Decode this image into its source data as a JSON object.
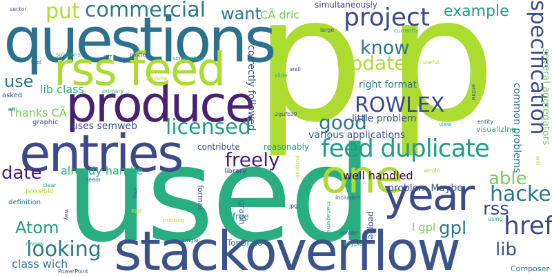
{
  "words": [
    {
      "text": "p",
      "color": "#addc30"
    },
    {
      "text": "p",
      "color": "#addc30"
    },
    {
      "text": "used",
      "color": "#28ae80"
    },
    {
      "text": "questions",
      "color": "#2c728e"
    },
    {
      "text": "stackoverflow",
      "color": "#3b528b"
    },
    {
      "text": "entries",
      "color": "#3e4989"
    },
    {
      "text": "produce",
      "color": "#482173"
    },
    {
      "text": "rss feed",
      "color": "#addc30"
    },
    {
      "text": "one",
      "color": "#addc30"
    },
    {
      "text": "year",
      "color": "#3e4989"
    },
    {
      "text": "feed duplicate",
      "color": "#1f9e89"
    },
    {
      "text": "project",
      "color": "#3e4989"
    },
    {
      "text": "href",
      "color": "#3e4989"
    },
    {
      "text": "specification",
      "color": "#3e4989"
    },
    {
      "text": "hacked",
      "color": "#2a788e"
    },
    {
      "text": "licensed",
      "color": "#1f9e89"
    },
    {
      "text": "looking",
      "color": "#2a788e"
    },
    {
      "text": "ROWLEX",
      "color": "#3e4989"
    },
    {
      "text": "commercial",
      "color": "#2a788e"
    },
    {
      "text": "put",
      "color": "#addc30"
    },
    {
      "text": "freely",
      "color": "#482173"
    },
    {
      "text": "good",
      "color": "#2a788e"
    },
    {
      "text": "Update",
      "color": "#addc30"
    },
    {
      "text": "know",
      "color": "#2a788e"
    },
    {
      "text": "date",
      "color": "#482173"
    },
    {
      "text": "able",
      "color": "#75d054"
    },
    {
      "text": "rss",
      "color": "#3e4989"
    },
    {
      "text": "gpl",
      "color": "#2a788e"
    },
    {
      "text": "lib",
      "color": "#3b528b"
    },
    {
      "text": "Atom",
      "color": "#1f9e89"
    },
    {
      "text": "want",
      "color": "#2a788e"
    },
    {
      "text": "use",
      "color": "#2a788e"
    },
    {
      "text": "example",
      "color": "#1f9e89"
    },
    {
      "text": "CÃ dric",
      "color": "#75d054"
    },
    {
      "text": "lib class",
      "color": "#28ae80"
    },
    {
      "text": "Thanks CÃ",
      "color": "#75d054"
    },
    {
      "text": "uses semweb",
      "color": "#3b528b"
    },
    {
      "text": "already handle",
      "color": "#28ae80"
    },
    {
      "text": "well handled",
      "color": "#440154"
    },
    {
      "text": "problem Maybe",
      "color": "#3b528b"
    },
    {
      "text": "class wich",
      "color": "#2a788e"
    },
    {
      "text": "little problem",
      "color": "#3b528b"
    },
    {
      "text": "right format",
      "color": "#2a788e"
    },
    {
      "text": "various applications",
      "color": "#3b528b"
    },
    {
      "text": "common problems",
      "color": "#2a788e"
    },
    {
      "text": "several aggregators",
      "color": "#75d054"
    },
    {
      "text": "correctly followed",
      "color": "#3e4989"
    },
    {
      "text": "simultaneously",
      "color": "#3e4989"
    },
    {
      "text": "reasonably",
      "color": "#1f9e89"
    },
    {
      "text": "contribute",
      "color": "#3b528b"
    },
    {
      "text": "TopBraid",
      "color": "#2a788e"
    },
    {
      "text": "l gpl",
      "color": "#75d054"
    },
    {
      "text": "graph",
      "color": "#2a788e"
    },
    {
      "text": "people",
      "color": "#3b528b"
    },
    {
      "text": "library",
      "color": "#3e4989"
    },
    {
      "text": "free",
      "color": "#2a788e"
    },
    {
      "text": "format",
      "color": "#3b528b"
    },
    {
      "text": "visualizing",
      "color": "#28ae80"
    },
    {
      "text": "Composer",
      "color": "#2a788e"
    },
    {
      "text": "graphic",
      "color": "#3b528b"
    },
    {
      "text": "definition",
      "color": "#2a788e"
    },
    {
      "text": "possible",
      "color": "#addc30"
    },
    {
      "text": "asked",
      "color": "#3e4989"
    },
    {
      "text": "sector",
      "color": "#3b528b"
    },
    {
      "text": "tool",
      "color": "#3e4989"
    },
    {
      "text": "alt",
      "color": "#2a788e"
    },
    {
      "text": "solutions",
      "color": "#28ae80"
    },
    {
      "text": "i37",
      "color": "#3b528b"
    },
    {
      "text": "src",
      "color": "#3b528b"
    },
    {
      "text": "plotter",
      "color": "#3b528b"
    },
    {
      "text": "screenshot",
      "color": "#28ae80"
    },
    {
      "text": "primary",
      "color": "#28ae80"
    },
    {
      "text": "Anyone",
      "color": "#addc30"
    },
    {
      "text": "slide",
      "color": "#28ae80"
    },
    {
      "text": "well",
      "color": "#3b528b"
    },
    {
      "text": "2gufbz9",
      "color": "#3b528b"
    },
    {
      "text": "large",
      "color": "#3b528b"
    },
    {
      "text": "currently",
      "color": "#28ae80"
    },
    {
      "text": "useful",
      "color": "#addc30"
    },
    {
      "text": "entire",
      "color": "#3b528b"
    },
    {
      "text": "entity",
      "color": "#3b528b"
    },
    {
      "text": "view",
      "color": "#28ae80"
    },
    {
      "text": "whole",
      "color": "#addc30"
    },
    {
      "text": "will",
      "color": "#addc30"
    },
    {
      "text": "using",
      "color": "#28ae80"
    },
    {
      "text": "inclusion",
      "color": "#3b528b"
    },
    {
      "text": "jpg",
      "color": "#3b528b"
    },
    {
      "text": "management",
      "color": "#28ae80"
    },
    {
      "text": "render",
      "color": "#3b528b"
    },
    {
      "text": "tinypic",
      "color": "#28ae80"
    },
    {
      "text": "purpose",
      "color": "#addc30"
    },
    {
      "text": "img",
      "color": "#3b528b"
    },
    {
      "text": "RDF",
      "color": "#addc30"
    },
    {
      "text": "printing",
      "color": "#addc30"
    },
    {
      "text": "single",
      "color": "#3b528b"
    },
    {
      "text": "review",
      "color": "#28ae80"
    },
    {
      "text": "PowerPoint",
      "color": "#3b528b"
    },
    {
      "text": "seem",
      "color": "#3b528b"
    },
    {
      "text": "clear",
      "color": "#28ae80"
    },
    {
      "text": "way",
      "color": "#3b528b"
    }
  ]
}
